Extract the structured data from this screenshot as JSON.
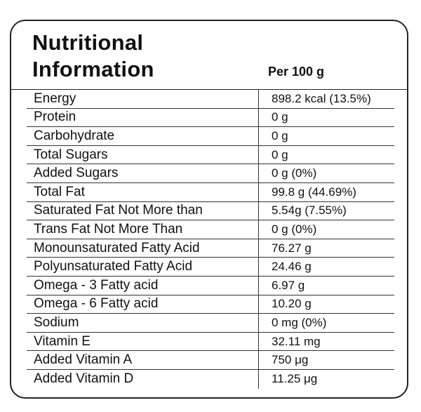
{
  "label": {
    "title_line1": "Nutritional",
    "title_line2": "Information",
    "per_label": "Per 100 g",
    "rows": [
      {
        "name": "Energy",
        "value": "898.2 kcal (13.5%)"
      },
      {
        "name": "Protein",
        "value": "0 g"
      },
      {
        "name": "Carbohydrate",
        "value": "0 g"
      },
      {
        "name": "Total Sugars",
        "value": "0 g"
      },
      {
        "name": "Added Sugars",
        "value": "0 g (0%)"
      },
      {
        "name": "Total Fat",
        "value": "99.8 g (44.69%)"
      },
      {
        "name": "Saturated Fat Not More than",
        "value": "5.54g (7.55%)"
      },
      {
        "name": "Trans Fat Not More Than",
        "value": "0 g (0%)"
      },
      {
        "name": "Monounsaturated Fatty Acid",
        "value": "76.27 g"
      },
      {
        "name": "Polyunsaturated Fatty Acid",
        "value": "24.46 g"
      },
      {
        "name": "Omega - 3 Fatty acid",
        "value": "6.97 g"
      },
      {
        "name": "Omega - 6 Fatty acid",
        "value": "10.20 g"
      },
      {
        "name": "Sodium",
        "value": "0 mg (0%)"
      },
      {
        "name": "Vitamin E",
        "value": "32.11 mg"
      },
      {
        "name": "Added Vitamin A",
        "value": "750 μg"
      },
      {
        "name": "Added Vitamin D",
        "value": "11.25 μg"
      }
    ]
  }
}
